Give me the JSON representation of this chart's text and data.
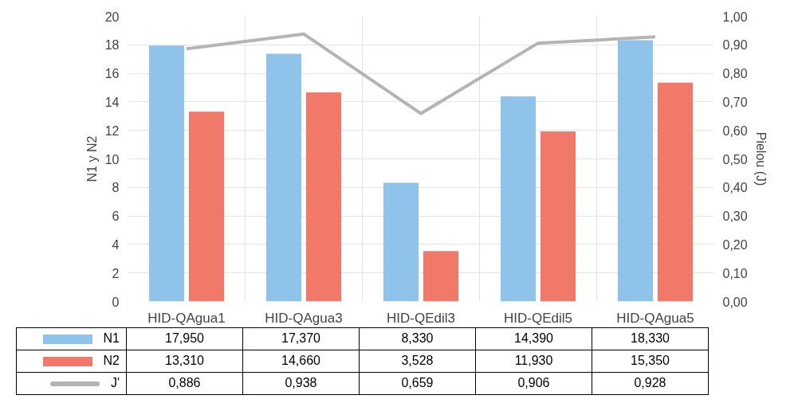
{
  "chart_data": {
    "type": "bar",
    "ylabel": "N1 y N2",
    "y2label": "Pielou (J)",
    "categories": [
      "HID-QAgua1",
      "HID-QAgua3",
      "HID-QEdil3",
      "HID-QEdil5",
      "HID-QAgua5"
    ],
    "series": [
      {
        "name": "N1",
        "color": "#8fc3ea",
        "values": [
          17.95,
          17.37,
          8.33,
          14.39,
          18.33
        ],
        "value_labels": [
          "17,950",
          "17,370",
          "8,330",
          "14,390",
          "18,330"
        ]
      },
      {
        "name": "N2",
        "color": "#f0796a",
        "values": [
          13.31,
          14.66,
          3.528,
          11.93,
          15.35
        ],
        "value_labels": [
          "13,310",
          "14,660",
          "3,528",
          "11,930",
          "15,350"
        ]
      },
      {
        "name": "J'",
        "type": "line",
        "axis": "y2",
        "color": "#b4b4b4",
        "values": [
          0.886,
          0.938,
          0.659,
          0.906,
          0.928
        ],
        "value_labels": [
          "0,886",
          "0,938",
          "0,659",
          "0,906",
          "0,928"
        ]
      }
    ],
    "ylim": [
      0,
      20
    ],
    "yticks": [
      0,
      2,
      4,
      6,
      8,
      10,
      12,
      14,
      16,
      18,
      20
    ],
    "y2lim": [
      0,
      1
    ],
    "y2ticks": [
      {
        "value": 0,
        "label": "0,00"
      },
      {
        "value": 0.1,
        "label": "0,10"
      },
      {
        "value": 0.2,
        "label": "0,20"
      },
      {
        "value": 0.3,
        "label": "0,30"
      },
      {
        "value": 0.4,
        "label": "0,40"
      },
      {
        "value": 0.5,
        "label": "0,50"
      },
      {
        "value": 0.6,
        "label": "0,60"
      },
      {
        "value": 0.7,
        "label": "0,70"
      },
      {
        "value": 0.8,
        "label": "0,80"
      },
      {
        "value": 0.9,
        "label": "0,90"
      },
      {
        "value": 1,
        "label": "1,00"
      }
    ],
    "grid": true,
    "legend": "bottom"
  }
}
